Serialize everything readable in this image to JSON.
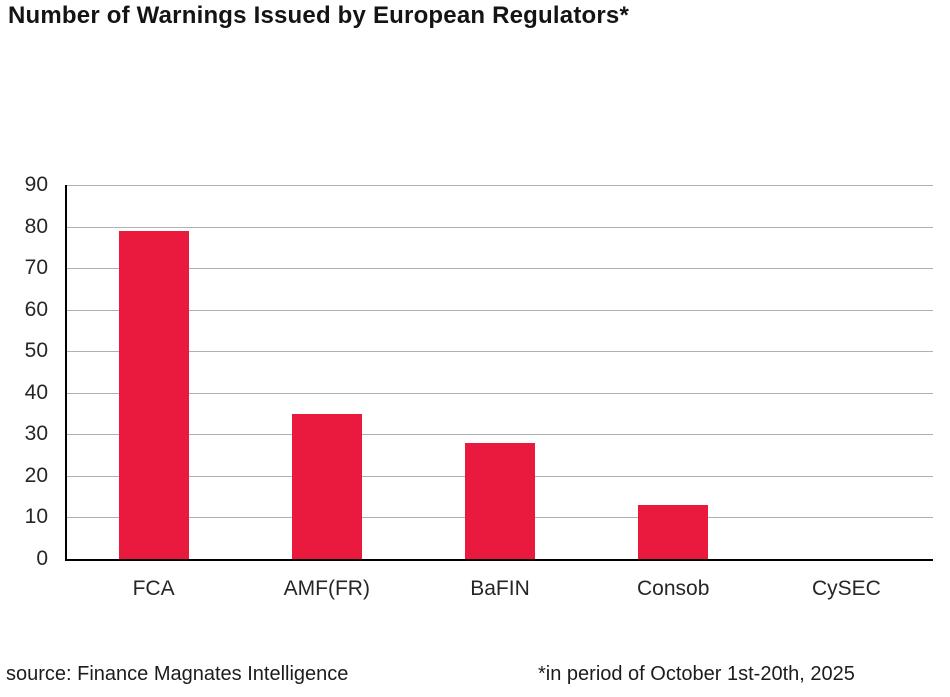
{
  "title": "Number of Warnings Issued by European Regulators*",
  "footer": {
    "source": "source: Finance Magnates Intelligence",
    "note": "*in period of October 1st-20th, 2025"
  },
  "colors": {
    "bar": "#e91a3e",
    "gridline": "#b0b0b0",
    "axis": "#000000",
    "text": "#262626"
  },
  "chart_data": {
    "type": "bar",
    "categories": [
      "FCA",
      "AMF(FR)",
      "BaFIN",
      "Consob",
      "CySEC"
    ],
    "values": [
      79,
      35,
      28,
      13,
      0
    ],
    "title": "Number of Warnings Issued by European Regulators*",
    "xlabel": "",
    "ylabel": "",
    "ylim": [
      0,
      90
    ],
    "yticks": [
      0,
      10,
      20,
      30,
      40,
      50,
      60,
      70,
      80,
      90
    ],
    "grid": true,
    "legend": false,
    "bar_color": "#e91a3e",
    "source_note": "source: Finance Magnates Intelligence",
    "period_note": "*in period of October 1st-20th, 2025"
  }
}
